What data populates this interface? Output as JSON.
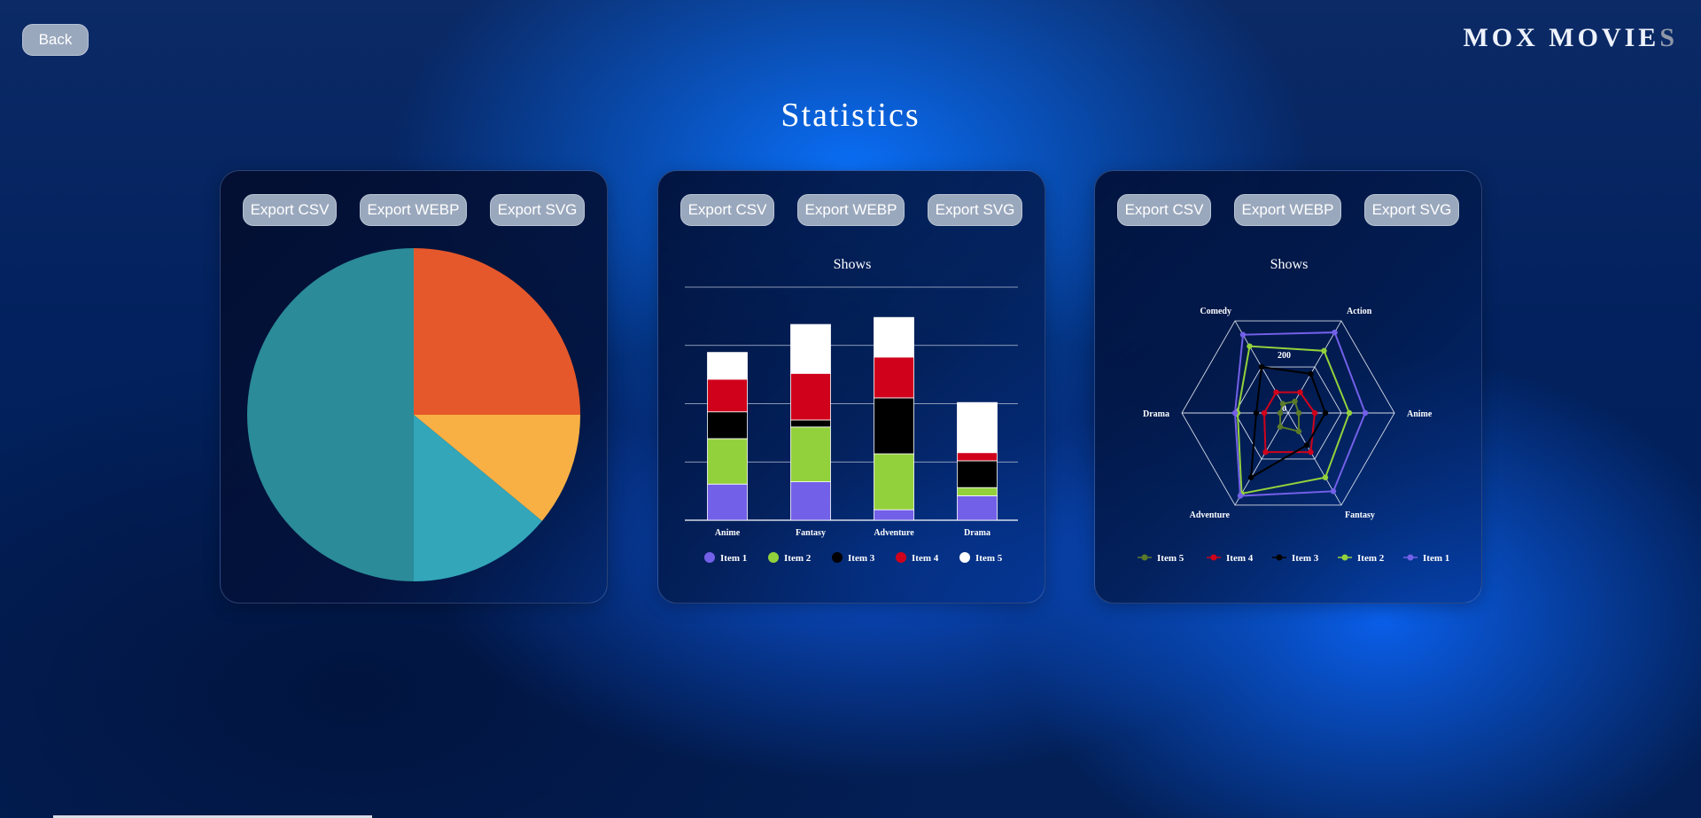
{
  "header": {
    "back_label": "Back",
    "brand_main": "MOX MOVIE",
    "brand_fade": "S"
  },
  "page": {
    "title": "Statistics"
  },
  "export_labels": {
    "csv": "Export CSV",
    "webp": "Export WEBP",
    "svg": "Export SVG"
  },
  "colors": {
    "item1": "#7360e8",
    "item2": "#93d13c",
    "item3": "#000000",
    "item4": "#d0021b",
    "item5": "#ffffff",
    "pie": [
      "#e5582b",
      "#f8b044",
      "#33a6ba",
      "#2b8b98"
    ],
    "button_bg": "#9aa8bd"
  },
  "chart_data": [
    {
      "type": "pie",
      "title": "",
      "values": [
        25,
        11,
        14,
        50
      ],
      "colors": [
        "#e5582b",
        "#f8b044",
        "#33a6ba",
        "#2b8b98"
      ]
    },
    {
      "type": "bar",
      "stacked": true,
      "title": "Shows",
      "categories": [
        "Anime",
        "Fantasy",
        "Adventure",
        "Drama"
      ],
      "ylim": [
        0,
        200
      ],
      "grid": true,
      "legend": "bottom",
      "series": [
        {
          "name": "Item 1",
          "values": [
            31,
            33,
            9,
            21
          ]
        },
        {
          "name": "Item 2",
          "values": [
            39,
            47,
            48,
            7
          ]
        },
        {
          "name": "Item 3",
          "values": [
            23,
            6,
            48,
            23
          ]
        },
        {
          "name": "Item 4",
          "values": [
            28,
            40,
            35,
            7
          ]
        },
        {
          "name": "Item 5",
          "values": [
            23,
            42,
            34,
            43
          ]
        }
      ]
    },
    {
      "type": "radar",
      "title": "Shows",
      "categories": [
        "Action",
        "Anime",
        "Fantasy",
        "Adventure",
        "Drama",
        "Comedy"
      ],
      "tick_labels": [
        "0",
        "200"
      ],
      "rmax": 400,
      "legend": "bottom",
      "series": [
        {
          "name": "Item 5",
          "values": [
            50,
            40,
            80,
            60,
            30,
            40
          ]
        },
        {
          "name": "Item 4",
          "values": [
            90,
            100,
            170,
            170,
            90,
            90
          ]
        },
        {
          "name": "Item 3",
          "values": [
            170,
            140,
            140,
            280,
            120,
            200
          ]
        },
        {
          "name": "Item 2",
          "values": [
            270,
            230,
            280,
            350,
            190,
            290
          ]
        },
        {
          "name": "Item 1",
          "values": [
            350,
            290,
            340,
            360,
            200,
            340
          ]
        }
      ]
    }
  ]
}
